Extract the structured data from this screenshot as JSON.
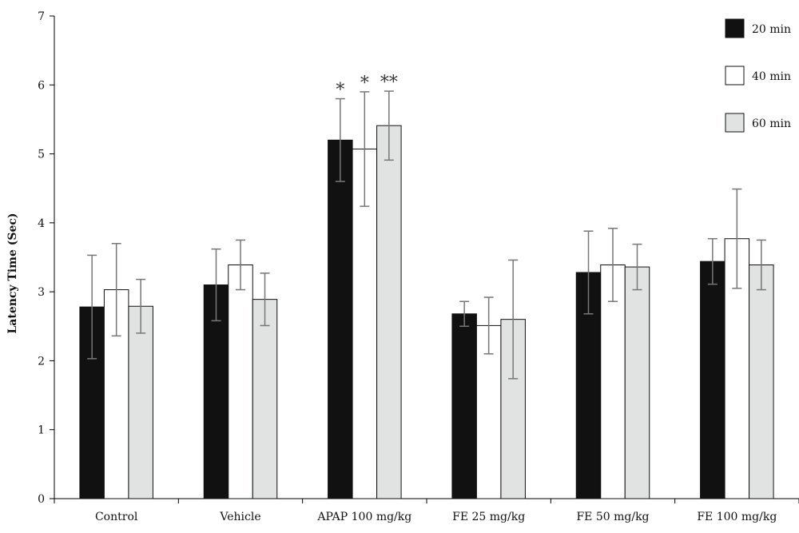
{
  "chart_data": {
    "type": "bar",
    "title": "",
    "xlabel": "",
    "ylabel": "Latency Time (Sec)",
    "ylim": [
      0,
      7
    ],
    "yticks": [
      0,
      1,
      2,
      3,
      4,
      5,
      6,
      7
    ],
    "grid": false,
    "legend_position": "top-right",
    "categories": [
      "Control",
      "Vehicle",
      "APAP 100 mg/kg",
      "FE 25 mg/kg",
      "FE 50 mg/kg",
      "FE 100 mg/kg"
    ],
    "series": [
      {
        "name": "20 min",
        "color": "#111111",
        "values": [
          2.78,
          3.1,
          5.2,
          2.68,
          3.28,
          3.44
        ],
        "errors": [
          0.75,
          0.52,
          0.6,
          0.18,
          0.6,
          0.33
        ]
      },
      {
        "name": "40 min",
        "color": "#ffffff",
        "values": [
          3.03,
          3.39,
          5.07,
          2.51,
          3.39,
          3.77
        ],
        "errors": [
          0.67,
          0.36,
          0.83,
          0.41,
          0.53,
          0.72
        ]
      },
      {
        "name": "60 min",
        "color": "#e0e3e2",
        "values": [
          2.79,
          2.89,
          5.41,
          2.6,
          3.36,
          3.39
        ],
        "errors": [
          0.39,
          0.38,
          0.5,
          0.86,
          0.33,
          0.36
        ]
      }
    ],
    "annotations": [
      {
        "category": 2,
        "series": 0,
        "text": "*"
      },
      {
        "category": 2,
        "series": 1,
        "text": "*"
      },
      {
        "category": 2,
        "series": 2,
        "text": "**"
      }
    ]
  }
}
